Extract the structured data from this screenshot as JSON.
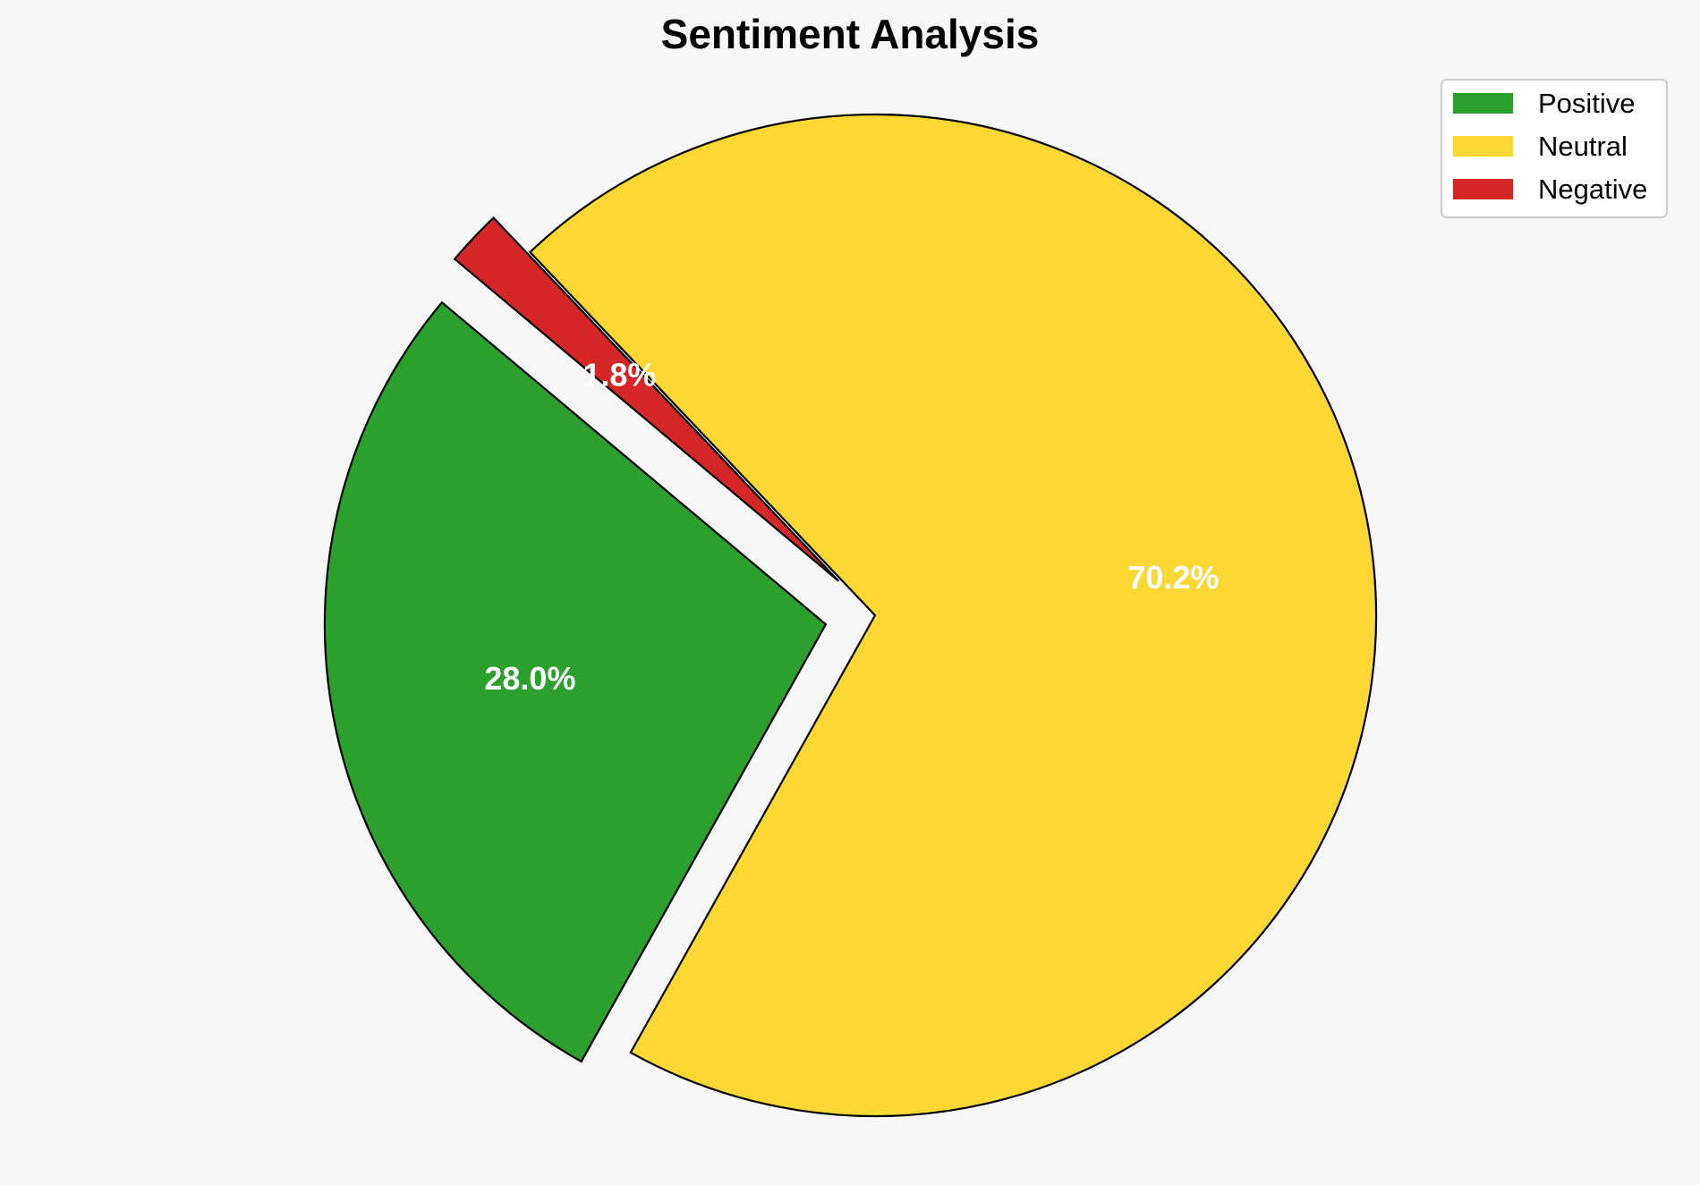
{
  "chart_data": {
    "type": "pie",
    "title": "Sentiment Analysis",
    "labels": [
      "Positive",
      "Neutral",
      "Negative"
    ],
    "values": [
      28.0,
      70.2,
      1.8
    ],
    "value_labels": [
      "28.0%",
      "70.2%",
      "1.8%"
    ],
    "colors": [
      "#2ca02c",
      "#fdd835",
      "#d62728"
    ],
    "exploded": [
      true,
      false,
      true
    ],
    "start_angle_deg": 140,
    "legend_position": "top-right",
    "edge_color": "#000000",
    "background": "#f7f7f7"
  }
}
